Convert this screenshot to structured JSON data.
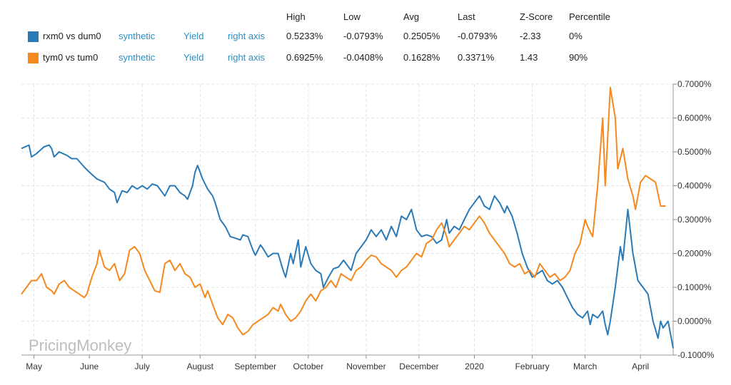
{
  "legend": {
    "headers": [
      "High",
      "Low",
      "Avg",
      "Last",
      "Z-Score",
      "Percentile"
    ],
    "rows": [
      {
        "name": "rxm0 vs dum0",
        "color": "#2a7ab7",
        "type": "synthetic",
        "measure": "Yield",
        "axis": "right axis",
        "high": "0.5233%",
        "low": "-0.0793%",
        "avg": "0.2505%",
        "last": "-0.0793%",
        "z": "-2.33",
        "pct": "0%"
      },
      {
        "name": "tym0 vs tum0",
        "color": "#f5891f",
        "type": "synthetic",
        "measure": "Yield",
        "axis": "right axis",
        "high": "0.6925%",
        "low": "-0.0408%",
        "avg": "0.1628%",
        "last": "0.3371%",
        "z": "1.43",
        "pct": "90%"
      }
    ]
  },
  "watermark": "PricingMonkey",
  "chart_data": {
    "type": "line",
    "x_labels": [
      "May",
      "June",
      "July",
      "August",
      "September",
      "October",
      "November",
      "December",
      "2020",
      "February",
      "March",
      "April"
    ],
    "x_tick_index": [
      5,
      27,
      48,
      71,
      93,
      114,
      137,
      158,
      180,
      203,
      224,
      246
    ],
    "n_points": 260,
    "ylim": [
      -0.1,
      0.7
    ],
    "y_ticks": [
      -0.1,
      0.0,
      0.1,
      0.2,
      0.3,
      0.4,
      0.5,
      0.6,
      0.7
    ],
    "y_tick_labels": [
      "-0.1000%",
      "0.0000%",
      "0.1000%",
      "0.2000%",
      "0.3000%",
      "0.4000%",
      "0.5000%",
      "0.6000%",
      "0.7000%"
    ],
    "y_axis_side": "right",
    "grid": true,
    "series": [
      {
        "name": "rxm0 vs dum0",
        "color": "#2a7ab7",
        "points": [
          [
            0,
            0.51
          ],
          [
            3,
            0.52
          ],
          [
            4,
            0.485
          ],
          [
            6,
            0.495
          ],
          [
            9,
            0.515
          ],
          [
            11,
            0.52
          ],
          [
            12,
            0.51
          ],
          [
            13,
            0.485
          ],
          [
            15,
            0.5
          ],
          [
            18,
            0.49
          ],
          [
            20,
            0.48
          ],
          [
            22,
            0.48
          ],
          [
            25,
            0.455
          ],
          [
            27,
            0.44
          ],
          [
            30,
            0.42
          ],
          [
            33,
            0.41
          ],
          [
            35,
            0.39
          ],
          [
            37,
            0.38
          ],
          [
            38,
            0.35
          ],
          [
            40,
            0.385
          ],
          [
            42,
            0.38
          ],
          [
            44,
            0.4
          ],
          [
            46,
            0.39
          ],
          [
            48,
            0.4
          ],
          [
            50,
            0.39
          ],
          [
            52,
            0.405
          ],
          [
            54,
            0.4
          ],
          [
            56,
            0.38
          ],
          [
            57,
            0.37
          ],
          [
            59,
            0.4
          ],
          [
            61,
            0.4
          ],
          [
            63,
            0.38
          ],
          [
            65,
            0.37
          ],
          [
            66,
            0.36
          ],
          [
            68,
            0.4
          ],
          [
            69,
            0.44
          ],
          [
            70,
            0.46
          ],
          [
            72,
            0.42
          ],
          [
            74,
            0.39
          ],
          [
            76,
            0.37
          ],
          [
            77,
            0.35
          ],
          [
            79,
            0.3
          ],
          [
            81,
            0.28
          ],
          [
            83,
            0.25
          ],
          [
            85,
            0.245
          ],
          [
            87,
            0.24
          ],
          [
            88,
            0.255
          ],
          [
            90,
            0.25
          ],
          [
            92,
            0.21
          ],
          [
            93,
            0.195
          ],
          [
            95,
            0.225
          ],
          [
            96,
            0.215
          ],
          [
            98,
            0.19
          ],
          [
            100,
            0.2
          ],
          [
            102,
            0.2
          ],
          [
            104,
            0.15
          ],
          [
            105,
            0.13
          ],
          [
            107,
            0.2
          ],
          [
            108,
            0.17
          ],
          [
            110,
            0.24
          ],
          [
            111,
            0.16
          ],
          [
            113,
            0.22
          ],
          [
            115,
            0.17
          ],
          [
            117,
            0.15
          ],
          [
            119,
            0.14
          ],
          [
            120,
            0.1
          ],
          [
            122,
            0.13
          ],
          [
            124,
            0.155
          ],
          [
            126,
            0.16
          ],
          [
            128,
            0.18
          ],
          [
            130,
            0.16
          ],
          [
            131,
            0.15
          ],
          [
            133,
            0.2
          ],
          [
            135,
            0.22
          ],
          [
            137,
            0.24
          ],
          [
            139,
            0.27
          ],
          [
            141,
            0.25
          ],
          [
            143,
            0.27
          ],
          [
            145,
            0.24
          ],
          [
            147,
            0.28
          ],
          [
            149,
            0.25
          ],
          [
            151,
            0.31
          ],
          [
            153,
            0.3
          ],
          [
            155,
            0.33
          ],
          [
            157,
            0.27
          ],
          [
            159,
            0.25
          ],
          [
            161,
            0.255
          ],
          [
            163,
            0.25
          ],
          [
            165,
            0.23
          ],
          [
            167,
            0.24
          ],
          [
            169,
            0.3
          ],
          [
            170,
            0.26
          ],
          [
            172,
            0.28
          ],
          [
            174,
            0.27
          ],
          [
            176,
            0.3
          ],
          [
            178,
            0.33
          ],
          [
            180,
            0.35
          ],
          [
            182,
            0.37
          ],
          [
            184,
            0.34
          ],
          [
            186,
            0.33
          ],
          [
            188,
            0.37
          ],
          [
            190,
            0.35
          ],
          [
            192,
            0.32
          ],
          [
            193,
            0.34
          ],
          [
            195,
            0.31
          ],
          [
            197,
            0.26
          ],
          [
            199,
            0.2
          ],
          [
            201,
            0.16
          ],
          [
            203,
            0.13
          ],
          [
            205,
            0.14
          ],
          [
            207,
            0.15
          ],
          [
            209,
            0.12
          ],
          [
            211,
            0.11
          ],
          [
            213,
            0.12
          ],
          [
            215,
            0.1
          ],
          [
            217,
            0.07
          ],
          [
            219,
            0.04
          ],
          [
            221,
            0.02
          ],
          [
            223,
            0.01
          ],
          [
            225,
            0.03
          ],
          [
            226,
            -0.01
          ],
          [
            227,
            0.02
          ],
          [
            229,
            0.01
          ],
          [
            231,
            0.03
          ],
          [
            232,
            -0.01
          ],
          [
            233,
            -0.04
          ],
          [
            234,
            0.0
          ],
          [
            236,
            0.1
          ],
          [
            238,
            0.22
          ],
          [
            239,
            0.18
          ],
          [
            241,
            0.33
          ],
          [
            243,
            0.2
          ],
          [
            245,
            0.12
          ],
          [
            247,
            0.1
          ],
          [
            249,
            0.08
          ],
          [
            251,
            0.0
          ],
          [
            253,
            -0.05
          ],
          [
            254,
            0.0
          ],
          [
            255,
            -0.02
          ],
          [
            257,
            0.0
          ],
          [
            259,
            -0.08
          ]
        ]
      },
      {
        "name": "tym0 vs tum0",
        "color": "#f5891f",
        "points": [
          [
            0,
            0.08
          ],
          [
            2,
            0.1
          ],
          [
            4,
            0.12
          ],
          [
            6,
            0.12
          ],
          [
            8,
            0.14
          ],
          [
            10,
            0.1
          ],
          [
            12,
            0.09
          ],
          [
            13,
            0.08
          ],
          [
            15,
            0.11
          ],
          [
            17,
            0.12
          ],
          [
            19,
            0.1
          ],
          [
            21,
            0.09
          ],
          [
            23,
            0.08
          ],
          [
            25,
            0.07
          ],
          [
            26,
            0.08
          ],
          [
            28,
            0.13
          ],
          [
            30,
            0.17
          ],
          [
            31,
            0.21
          ],
          [
            33,
            0.16
          ],
          [
            35,
            0.15
          ],
          [
            37,
            0.17
          ],
          [
            39,
            0.12
          ],
          [
            41,
            0.14
          ],
          [
            43,
            0.21
          ],
          [
            45,
            0.22
          ],
          [
            47,
            0.2
          ],
          [
            49,
            0.15
          ],
          [
            51,
            0.12
          ],
          [
            53,
            0.09
          ],
          [
            55,
            0.085
          ],
          [
            57,
            0.17
          ],
          [
            59,
            0.18
          ],
          [
            61,
            0.15
          ],
          [
            63,
            0.17
          ],
          [
            65,
            0.14
          ],
          [
            67,
            0.13
          ],
          [
            69,
            0.1
          ],
          [
            71,
            0.11
          ],
          [
            73,
            0.07
          ],
          [
            74,
            0.09
          ],
          [
            76,
            0.05
          ],
          [
            78,
            0.01
          ],
          [
            80,
            -0.01
          ],
          [
            82,
            0.02
          ],
          [
            84,
            0.01
          ],
          [
            86,
            -0.02
          ],
          [
            88,
            -0.04
          ],
          [
            90,
            -0.03
          ],
          [
            92,
            -0.01
          ],
          [
            94,
            0.0
          ],
          [
            96,
            0.01
          ],
          [
            98,
            0.02
          ],
          [
            100,
            0.04
          ],
          [
            102,
            0.03
          ],
          [
            103,
            0.05
          ],
          [
            105,
            0.02
          ],
          [
            107,
            0.0
          ],
          [
            109,
            0.01
          ],
          [
            111,
            0.03
          ],
          [
            113,
            0.06
          ],
          [
            115,
            0.08
          ],
          [
            117,
            0.06
          ],
          [
            119,
            0.09
          ],
          [
            121,
            0.1
          ],
          [
            123,
            0.12
          ],
          [
            125,
            0.1
          ],
          [
            127,
            0.14
          ],
          [
            129,
            0.13
          ],
          [
            131,
            0.12
          ],
          [
            133,
            0.15
          ],
          [
            135,
            0.16
          ],
          [
            137,
            0.18
          ],
          [
            139,
            0.195
          ],
          [
            141,
            0.19
          ],
          [
            143,
            0.17
          ],
          [
            145,
            0.16
          ],
          [
            147,
            0.15
          ],
          [
            149,
            0.13
          ],
          [
            151,
            0.15
          ],
          [
            153,
            0.16
          ],
          [
            155,
            0.18
          ],
          [
            157,
            0.2
          ],
          [
            159,
            0.19
          ],
          [
            161,
            0.23
          ],
          [
            163,
            0.24
          ],
          [
            165,
            0.27
          ],
          [
            167,
            0.29
          ],
          [
            169,
            0.25
          ],
          [
            170,
            0.22
          ],
          [
            172,
            0.24
          ],
          [
            174,
            0.26
          ],
          [
            176,
            0.28
          ],
          [
            178,
            0.27
          ],
          [
            180,
            0.29
          ],
          [
            182,
            0.31
          ],
          [
            184,
            0.29
          ],
          [
            186,
            0.26
          ],
          [
            188,
            0.24
          ],
          [
            190,
            0.22
          ],
          [
            192,
            0.2
          ],
          [
            194,
            0.17
          ],
          [
            196,
            0.16
          ],
          [
            198,
            0.17
          ],
          [
            200,
            0.14
          ],
          [
            202,
            0.15
          ],
          [
            204,
            0.13
          ],
          [
            206,
            0.17
          ],
          [
            208,
            0.15
          ],
          [
            210,
            0.13
          ],
          [
            212,
            0.14
          ],
          [
            214,
            0.12
          ],
          [
            216,
            0.13
          ],
          [
            218,
            0.15
          ],
          [
            220,
            0.2
          ],
          [
            222,
            0.23
          ],
          [
            224,
            0.3
          ],
          [
            225,
            0.28
          ],
          [
            227,
            0.25
          ],
          [
            229,
            0.4
          ],
          [
            231,
            0.6
          ],
          [
            232,
            0.4
          ],
          [
            234,
            0.69
          ],
          [
            236,
            0.6
          ],
          [
            237,
            0.45
          ],
          [
            239,
            0.51
          ],
          [
            241,
            0.42
          ],
          [
            243,
            0.37
          ],
          [
            244,
            0.33
          ],
          [
            246,
            0.41
          ],
          [
            248,
            0.43
          ],
          [
            250,
            0.42
          ],
          [
            252,
            0.41
          ],
          [
            254,
            0.34
          ],
          [
            256,
            0.34
          ]
        ]
      }
    ]
  }
}
